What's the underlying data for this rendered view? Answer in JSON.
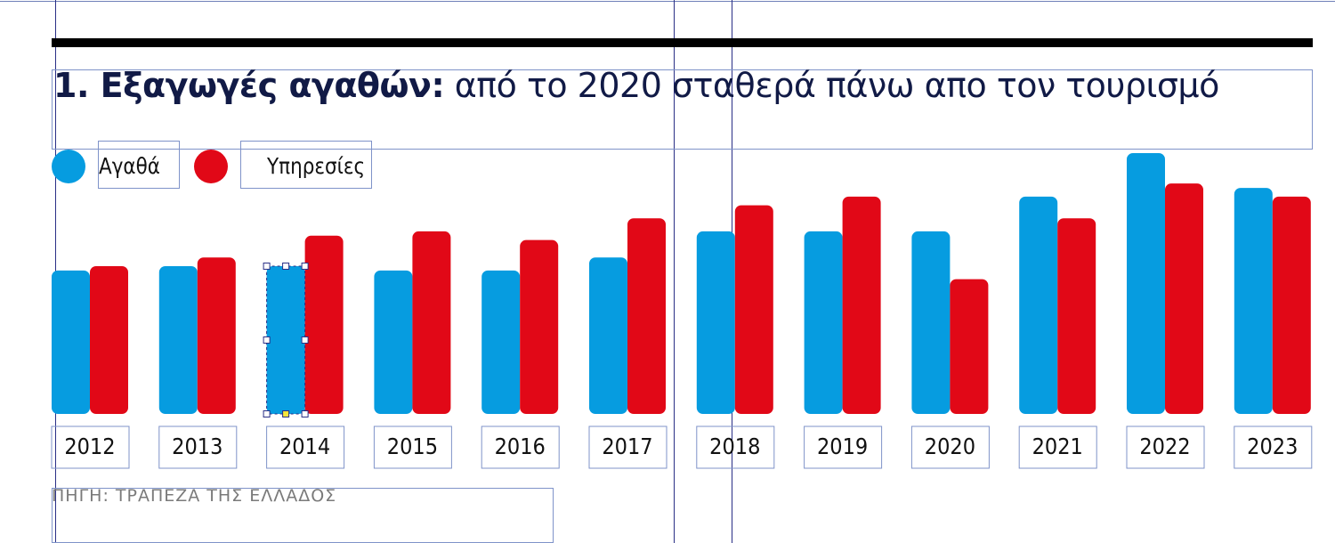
{
  "title": {
    "bold": "1. Εξαγωγές αγαθών:",
    "rest": " από το 2020 σταθερά πάνω απο τον τουρισμό"
  },
  "source": "ΠΗΓΗ: ΤΡΑΠΕΖΑ ΤΗΣ ΕΛΛΑΔΟΣ",
  "colors": {
    "goods": "#069ce0",
    "services": "#e10817",
    "rule": "#000000"
  },
  "chart_data": {
    "type": "bar",
    "categories": [
      "2012",
      "2013",
      "2014",
      "2015",
      "2016",
      "2017",
      "2018",
      "2019",
      "2020",
      "2021",
      "2022",
      "2023"
    ],
    "series": [
      {
        "name": "Αγαθά",
        "color": "#069ce0",
        "values": [
          33,
          34,
          34,
          33,
          33,
          36,
          42,
          42,
          42,
          50,
          60,
          52
        ]
      },
      {
        "name": "Υπηρεσίες",
        "color": "#e10817",
        "values": [
          34,
          36,
          41,
          42,
          40,
          45,
          48,
          50,
          31,
          45,
          53,
          50
        ]
      }
    ],
    "title": "1. Εξαγωγές αγαθών: από το 2020 σταθερά πάνω απο τον τουρισμό",
    "xlabel": "",
    "ylabel": "",
    "ylim": [
      0,
      60
    ],
    "grid": false,
    "legend": "top-left"
  }
}
